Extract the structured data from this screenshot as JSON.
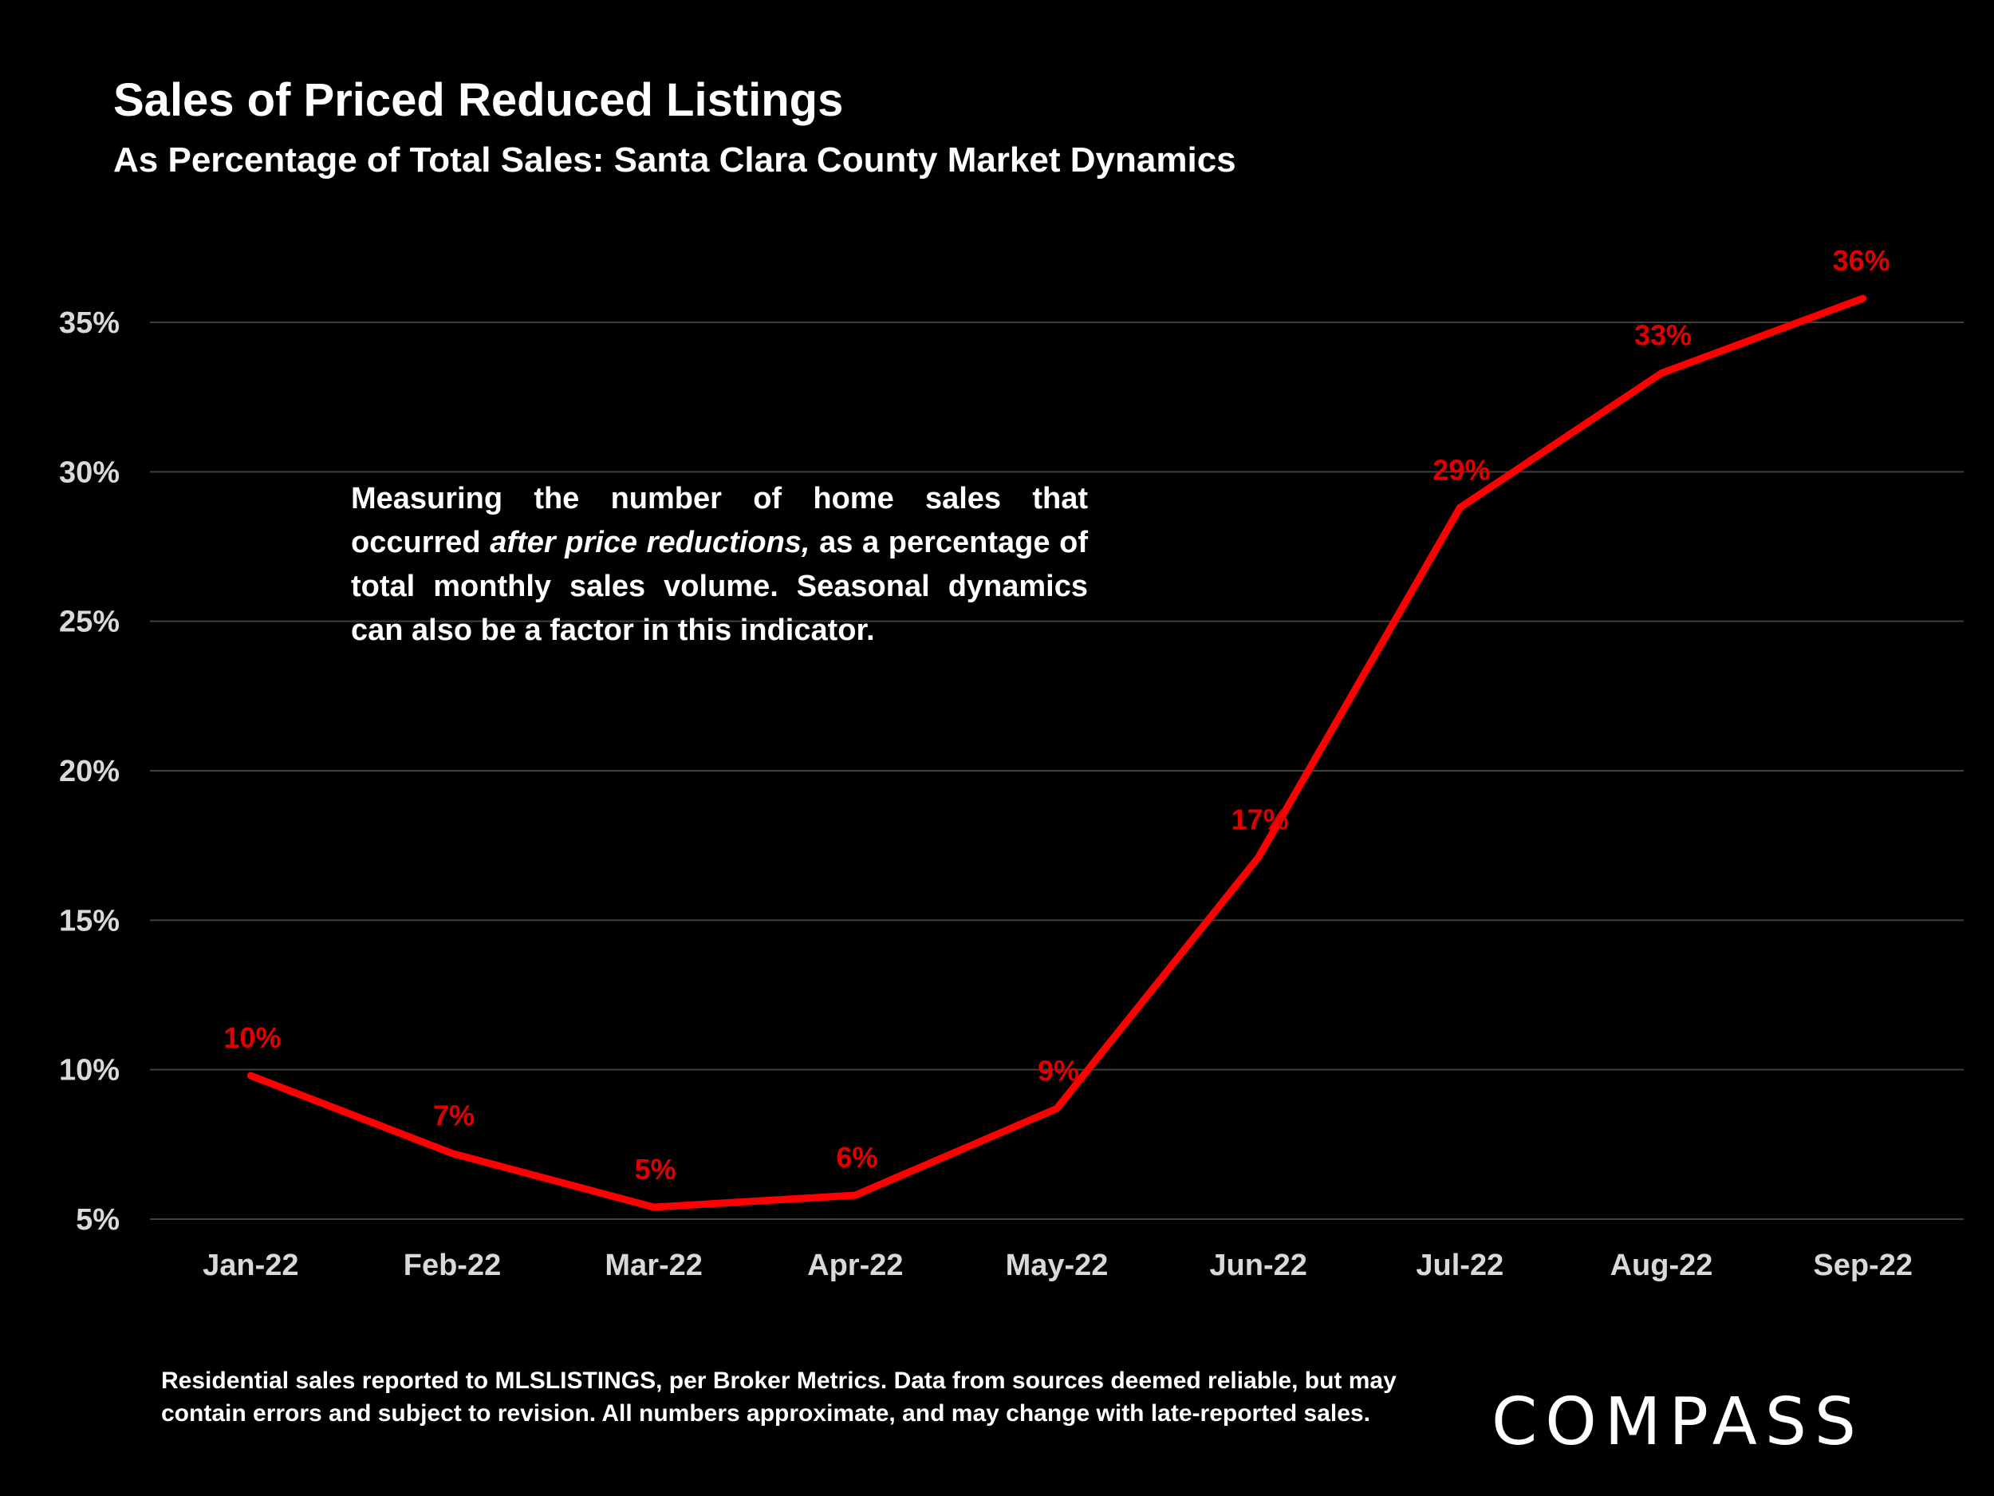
{
  "title": "Sales of Priced Reduced Listings",
  "subtitle": "As Percentage of Total Sales:  Santa Clara County Market Dynamics",
  "annotation": {
    "before": "Measuring the number of home sales that occurred ",
    "emphasis": "after price reductions,",
    "after": " as a percentage of total monthly sales volume. Seasonal dynamics can also be a factor in this indicator."
  },
  "footnote": "Residential sales reported to MLSLISTINGS, per Broker Metrics. Data from sources deemed reliable, but may contain errors and subject to revision. All numbers approximate, and may change with late-reported sales.",
  "logo": "COMPASS",
  "colors": {
    "background": "#000000",
    "line": "#ff0000",
    "label": "#e00000",
    "grid": "#404040",
    "text": "#ffffff"
  },
  "chart_data": {
    "type": "line",
    "categories": [
      "Jan-22",
      "Feb-22",
      "Mar-22",
      "Apr-22",
      "May-22",
      "Jun-22",
      "Jul-22",
      "Aug-22",
      "Sep-22"
    ],
    "values": [
      9.8,
      7.2,
      5.4,
      5.8,
      8.7,
      17.1,
      28.8,
      33.3,
      35.8
    ],
    "data_labels": [
      "10%",
      "7%",
      "5%",
      "6%",
      "9%",
      "17%",
      "29%",
      "33%",
      "36%"
    ],
    "yticks": [
      5,
      10,
      15,
      20,
      25,
      30,
      35
    ],
    "ytick_labels": [
      "5%",
      "10%",
      "15%",
      "20%",
      "25%",
      "30%",
      "35%"
    ],
    "ylim": [
      5,
      35
    ],
    "grid": true,
    "legend": "none"
  }
}
